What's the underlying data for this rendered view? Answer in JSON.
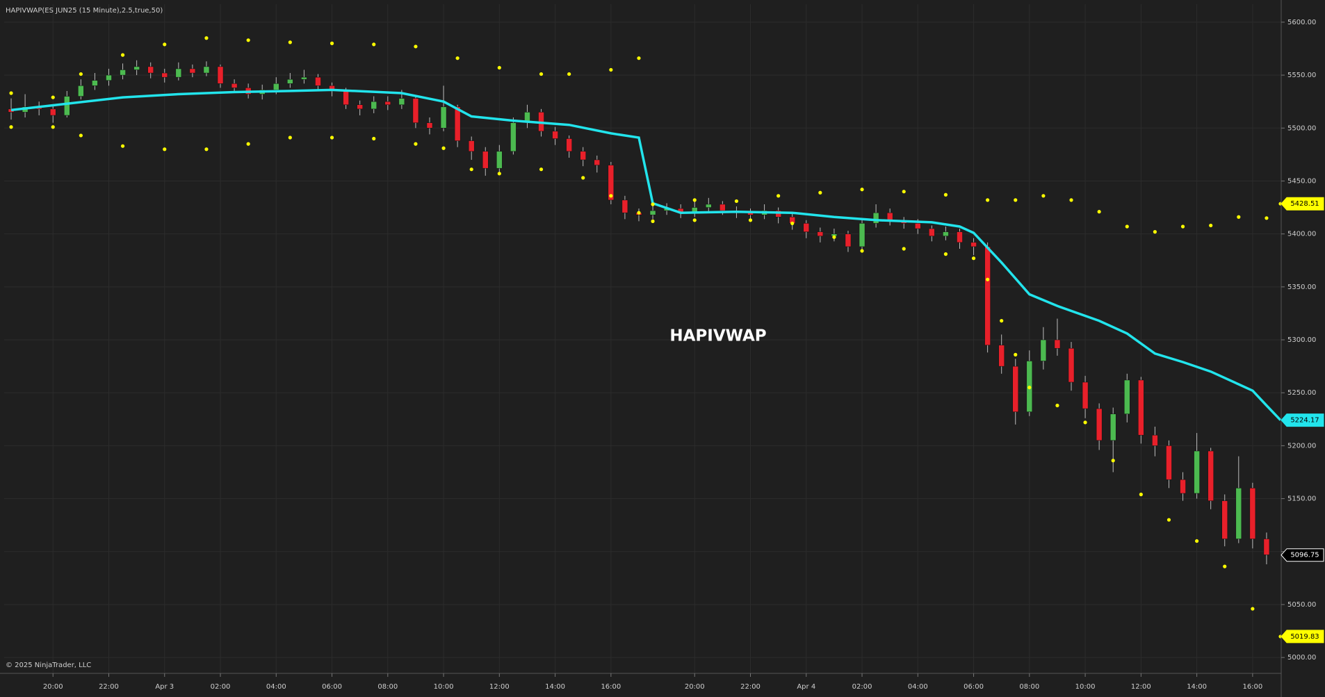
{
  "chart_data": {
    "type": "candlestick",
    "title": "HAPIVWAP(ES JUN25 (15 Minute),2.5,true,50)",
    "watermark": "HAPIVWAP",
    "footer": "© 2025 NinjaTrader, LLC",
    "xlim": [
      -1,
      182
    ],
    "ylim": [
      4985,
      5617
    ],
    "grid": true,
    "xticks": [
      {
        "value": 6,
        "label": "20:00"
      },
      {
        "value": 14,
        "label": "22:00"
      },
      {
        "value": 22,
        "label": "Apr 3"
      },
      {
        "value": 30,
        "label": "02:00"
      },
      {
        "value": 38,
        "label": "04:00"
      },
      {
        "value": 46,
        "label": "06:00"
      },
      {
        "value": 54,
        "label": "08:00"
      },
      {
        "value": 62,
        "label": "10:00"
      },
      {
        "value": 70,
        "label": "12:00"
      },
      {
        "value": 78,
        "label": "14:00"
      },
      {
        "value": 86,
        "label": "16:00"
      },
      {
        "value": 98,
        "label": "20:00"
      },
      {
        "value": 106,
        "label": "22:00"
      },
      {
        "value": 114,
        "label": "Apr 4"
      },
      {
        "value": 122,
        "label": "02:00"
      },
      {
        "value": 130,
        "label": "04:00"
      },
      {
        "value": 138,
        "label": "06:00"
      },
      {
        "value": 146,
        "label": "08:00"
      },
      {
        "value": 154,
        "label": "10:00"
      },
      {
        "value": 162,
        "label": "12:00"
      },
      {
        "value": 170,
        "label": "14:00"
      },
      {
        "value": 178,
        "label": "16:00"
      }
    ],
    "yticks": [
      {
        "value": 5600,
        "label": "5600.00"
      },
      {
        "value": 5550,
        "label": "5550.00"
      },
      {
        "value": 5500,
        "label": "5500.00"
      },
      {
        "value": 5450,
        "label": "5450.00"
      },
      {
        "value": 5400,
        "label": "5400.00"
      },
      {
        "value": 5350,
        "label": "5350.00"
      },
      {
        "value": 5300,
        "label": "5300.00"
      },
      {
        "value": 5250,
        "label": "5250.00"
      },
      {
        "value": 5200,
        "label": "5200.00"
      },
      {
        "value": 5150,
        "label": "5150.00"
      },
      {
        "value": 5100,
        "label": "5100.00"
      },
      {
        "value": 5050,
        "label": "5050.00"
      },
      {
        "value": 5000,
        "label": "5000.00"
      }
    ],
    "candles": {
      "up_color": "#4cba50",
      "down_color": "#e8202a",
      "wick_color": "#bdbdbd",
      "x": [
        0,
        2,
        4,
        6,
        8,
        10,
        12,
        14,
        16,
        18,
        20,
        22,
        24,
        26,
        28,
        30,
        32,
        34,
        36,
        38,
        40,
        42,
        44,
        46,
        48,
        50,
        52,
        54,
        56,
        58,
        60,
        62,
        64,
        66,
        68,
        70,
        72,
        74,
        76,
        78,
        80,
        82,
        84,
        86,
        88,
        90,
        92,
        94,
        96,
        98,
        100,
        102,
        104,
        106,
        108,
        110,
        112,
        114,
        116,
        118,
        120,
        122,
        124,
        126,
        128,
        130,
        132,
        134,
        136,
        138,
        140,
        142,
        144,
        146,
        148,
        150,
        152,
        154,
        156,
        158,
        160,
        162,
        164,
        166,
        168,
        170,
        172,
        174,
        176,
        178,
        180
      ],
      "open": [
        5518,
        5515,
        5520,
        5518,
        5512,
        5530,
        5540,
        5545,
        5550,
        5555,
        5558,
        5552,
        5548,
        5556,
        5552,
        5558,
        5542,
        5538,
        5532,
        5536,
        5542,
        5546,
        5548,
        5540,
        5535,
        5522,
        5518,
        5525,
        5522,
        5528,
        5505,
        5500,
        5520,
        5488,
        5478,
        5462,
        5478,
        5505,
        5515,
        5497,
        5490,
        5478,
        5470,
        5465,
        5432,
        5420,
        5418,
        5422,
        5424,
        5420,
        5425,
        5428,
        5422,
        5420,
        5418,
        5422,
        5416,
        5410,
        5402,
        5398,
        5400,
        5388,
        5410,
        5420,
        5412,
        5410,
        5405,
        5398,
        5402,
        5392,
        5388,
        5295,
        5275,
        5232,
        5280,
        5300,
        5292,
        5260,
        5235,
        5205,
        5230,
        5262,
        5210,
        5200,
        5168,
        5155,
        5195,
        5148,
        5112,
        5160,
        5112
      ],
      "high": [
        5528,
        5532,
        5525,
        5522,
        5535,
        5546,
        5552,
        5556,
        5561,
        5564,
        5562,
        5556,
        5562,
        5560,
        5563,
        5560,
        5546,
        5542,
        5541,
        5548,
        5552,
        5555,
        5551,
        5543,
        5538,
        5526,
        5530,
        5530,
        5536,
        5530,
        5510,
        5540,
        5522,
        5492,
        5482,
        5484,
        5510,
        5522,
        5518,
        5501,
        5493,
        5482,
        5474,
        5468,
        5436,
        5424,
        5428,
        5429,
        5428,
        5432,
        5434,
        5431,
        5426,
        5424,
        5428,
        5425,
        5420,
        5413,
        5406,
        5405,
        5403,
        5414,
        5428,
        5424,
        5416,
        5414,
        5408,
        5407,
        5405,
        5396,
        5392,
        5305,
        5282,
        5290,
        5312,
        5320,
        5298,
        5266,
        5240,
        5236,
        5268,
        5265,
        5218,
        5205,
        5175,
        5212,
        5198,
        5154,
        5190,
        5165,
        5118
      ],
      "low": [
        5508,
        5510,
        5512,
        5505,
        5510,
        5527,
        5536,
        5540,
        5546,
        5550,
        5547,
        5543,
        5545,
        5548,
        5549,
        5538,
        5533,
        5528,
        5527,
        5532,
        5538,
        5542,
        5536,
        5530,
        5518,
        5512,
        5514,
        5517,
        5518,
        5500,
        5494,
        5497,
        5482,
        5470,
        5455,
        5458,
        5475,
        5500,
        5492,
        5484,
        5472,
        5464,
        5458,
        5428,
        5414,
        5412,
        5414,
        5418,
        5415,
        5416,
        5421,
        5418,
        5415,
        5412,
        5414,
        5410,
        5404,
        5396,
        5392,
        5393,
        5383,
        5385,
        5406,
        5408,
        5405,
        5400,
        5393,
        5394,
        5386,
        5380,
        5288,
        5268,
        5220,
        5228,
        5272,
        5285,
        5252,
        5226,
        5196,
        5175,
        5222,
        5202,
        5190,
        5160,
        5148,
        5150,
        5140,
        5105,
        5108,
        5103,
        5088
      ],
      "close": [
        5515,
        5520,
        5518,
        5512,
        5530,
        5540,
        5545,
        5550,
        5555,
        5558,
        5552,
        5548,
        5556,
        5552,
        5558,
        5542,
        5538,
        5532,
        5536,
        5542,
        5546,
        5548,
        5540,
        5535,
        5522,
        5518,
        5525,
        5522,
        5528,
        5505,
        5500,
        5520,
        5488,
        5478,
        5462,
        5478,
        5505,
        5515,
        5497,
        5490,
        5478,
        5470,
        5465,
        5432,
        5420,
        5418,
        5422,
        5424,
        5420,
        5425,
        5428,
        5422,
        5420,
        5418,
        5422,
        5416,
        5410,
        5402,
        5398,
        5400,
        5388,
        5410,
        5420,
        5412,
        5410,
        5405,
        5398,
        5402,
        5392,
        5388,
        5295,
        5275,
        5232,
        5280,
        5300,
        5292,
        5260,
        5235,
        5205,
        5230,
        5262,
        5210,
        5200,
        5168,
        5155,
        5195,
        5148,
        5112,
        5160,
        5112,
        5097
      ]
    },
    "lines": [
      {
        "style": "line",
        "color": "#22e4ec",
        "x": [
          0,
          8,
          16,
          24,
          32,
          40,
          46,
          56,
          62,
          66,
          72,
          80,
          86,
          90,
          92,
          96,
          104,
          112,
          118,
          124,
          132,
          136,
          138,
          142,
          146,
          150,
          156,
          160,
          164,
          168,
          172,
          176,
          178,
          180,
          182
        ],
        "values": [
          5517,
          5523,
          5529,
          5532,
          5534,
          5535,
          5536,
          5533,
          5525,
          5511,
          5507,
          5503,
          5495,
          5491,
          5429,
          5420,
          5421,
          5420,
          5416,
          5413,
          5411,
          5407,
          5401,
          5373,
          5343,
          5332,
          5318,
          5306,
          5287,
          5279,
          5270,
          5258,
          5252,
          5238,
          5224.17
        ]
      },
      {
        "style": "dots",
        "color": "#ffff00",
        "x": [
          0,
          6,
          10,
          16,
          22,
          28,
          34,
          40,
          46,
          52,
          58,
          64,
          70,
          76,
          80,
          86,
          90,
          91,
          92,
          98,
          104,
          110,
          116,
          122,
          128,
          134,
          140,
          144,
          148,
          152,
          156,
          160,
          164,
          168,
          172,
          176,
          180,
          182
        ],
        "values": [
          5533,
          5529,
          5551,
          5569,
          5579,
          5585,
          5583,
          5581,
          5580,
          5579,
          5577,
          5566,
          5557,
          5551,
          5551,
          5555,
          5566,
          null,
          5428,
          5432,
          5431,
          5436,
          5439,
          5442,
          5440,
          5437,
          5432,
          5432,
          5436,
          5432,
          5421,
          5407,
          5402,
          5407,
          5408,
          5416,
          5415,
          5428.51
        ]
      },
      {
        "style": "dots",
        "color": "#ffff00",
        "x": [
          0,
          6,
          10,
          16,
          22,
          28,
          34,
          40,
          46,
          52,
          58,
          62,
          66,
          70,
          76,
          82,
          86,
          90,
          91,
          92,
          98,
          106,
          112,
          118,
          122,
          128,
          134,
          138,
          140,
          142,
          144,
          146,
          150,
          154,
          158,
          162,
          166,
          170,
          174,
          178,
          182
        ],
        "values": [
          5501,
          5501,
          5493,
          5483,
          5480,
          5480,
          5485,
          5491,
          5491,
          5490,
          5485,
          5481,
          5461,
          5457,
          5461,
          5453,
          5436,
          5420,
          null,
          5412,
          5413,
          5413,
          5410,
          5397,
          5384,
          5386,
          5381,
          5377,
          5357,
          5318,
          5286,
          5255,
          5238,
          5222,
          5186,
          5154,
          5130,
          5110,
          5086,
          5046,
          5019.83
        ]
      }
    ],
    "price_markers": [
      {
        "value": 5428.51,
        "color": "#ffff00"
      },
      {
        "value": 5224.17,
        "color": "#22e4ec"
      },
      {
        "value": 5096.75,
        "color": "#000000"
      },
      {
        "value": 5019.83,
        "color": "#ffff00"
      }
    ]
  }
}
